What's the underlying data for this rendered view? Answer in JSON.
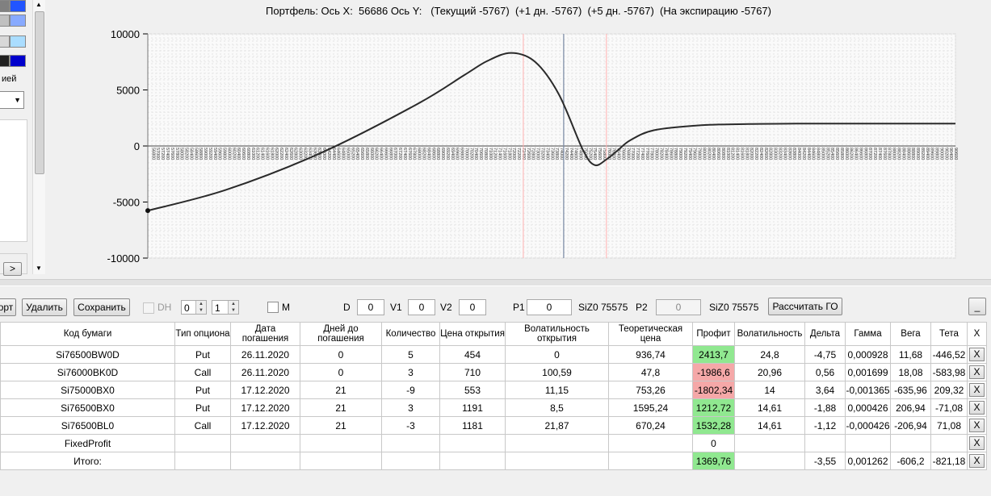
{
  "left_panel": {
    "label_tail": "ией",
    "next_button": ">",
    "swatches": [
      [
        "#808080",
        "#2255ff"
      ],
      [
        "#c0c0c0",
        "#88aaff"
      ],
      [
        "#d8d8d8",
        "#aaddff"
      ],
      [
        "#202020",
        "#0000cc"
      ]
    ]
  },
  "chart": {
    "title": "Портфель: Ось X:  56686 Ось Y:   (Текущий -5767)  (+1 дн. -5767)  (+5 дн. -5767)  (На экспирацию -5767)"
  },
  "chart_data": {
    "type": "line",
    "title": "Портфель: Ось X:  56686 Ось Y:   (Текущий -5767)  (+1 дн. -5767)  (+5 дн. -5767)  (На экспирацию -5767)",
    "xlabel": "",
    "ylabel": "",
    "xlim": [
      56686,
      90700
    ],
    "ylim": [
      -10000,
      10000
    ],
    "y_ticks": [
      "10000",
      "5000",
      "0",
      "-5000",
      "-10000"
    ],
    "grid": true,
    "vertical_markers": {
      "pink": [
        72500,
        76000
      ],
      "blue": [
        74200
      ]
    },
    "series": [
      {
        "x": [
          56686,
          60000,
          64000,
          68000,
          70000,
          71000,
          72000,
          73000,
          74000,
          75000,
          75500,
          76000,
          76500,
          77000,
          78000,
          80000,
          82000,
          84000,
          86000,
          88000,
          90700
        ],
        "values": [
          -5767,
          -3900,
          -600,
          3700,
          6300,
          7600,
          8300,
          7500,
          4600,
          -300,
          -1700,
          -1200,
          -350,
          500,
          1400,
          1850,
          1960,
          1990,
          2000,
          2000,
          2000
        ]
      }
    ]
  },
  "toolbar": {
    "import_label": "орт",
    "delete_label": "Удалить",
    "save_label": "Сохранить",
    "dh_label": "DH",
    "spin1_value": "0",
    "spin2_value": "1",
    "m_label": "M",
    "d_label": "D",
    "d_value": "0",
    "v1_label": "V1",
    "v1_value": "0",
    "v2_label": "V2",
    "v2_value": "0",
    "p1_label": "P1",
    "p1_value": "0",
    "p1_ticker": "SiZ0 75575",
    "p2_label": "P2",
    "p2_value": "0",
    "p2_ticker": "SiZ0 75575",
    "calc_go_label": "Рассчитать ГО",
    "minimize_label": "_"
  },
  "table": {
    "headers": [
      "Код бумаги",
      "Тип опциона",
      "Дата погашения",
      "Дней до погашения",
      "Количество",
      "Цена открытия",
      "Волатильность открытия",
      "Теоретическая цена",
      "Профит",
      "Волатильность",
      "Дельта",
      "Гамма",
      "Вега",
      "Тета",
      "X"
    ],
    "rows": [
      [
        "Si76500BW0D",
        "Put",
        "26.11.2020",
        "0",
        "5",
        "454",
        "0",
        "936,74",
        "2413,7",
        "24,8",
        "-4,75",
        "0,000928",
        "11,68",
        "-446,52"
      ],
      [
        "Si76000BK0D",
        "Call",
        "26.11.2020",
        "0",
        "3",
        "710",
        "100,59",
        "47,8",
        "-1986,6",
        "20,96",
        "0,56",
        "0,001699",
        "18,08",
        "-583,98"
      ],
      [
        "Si75000BX0",
        "Put",
        "17.12.2020",
        "21",
        "-9",
        "553",
        "11,15",
        "753,26",
        "-1802,34",
        "14",
        "3,64",
        "-0,001365",
        "-635,96",
        "209,32"
      ],
      [
        "Si76500BX0",
        "Put",
        "17.12.2020",
        "21",
        "3",
        "1191",
        "8,5",
        "1595,24",
        "1212,72",
        "14,61",
        "-1,88",
        "0,000426",
        "206,94",
        "-71,08"
      ],
      [
        "Si76500BL0",
        "Call",
        "17.12.2020",
        "21",
        "-3",
        "1181",
        "21,87",
        "670,24",
        "1532,28",
        "14,61",
        "-1,12",
        "-0,000426",
        "-206,94",
        "71,08"
      ],
      [
        "FixedProfit",
        "",
        "",
        "",
        "",
        "",
        "",
        "",
        "0",
        "",
        "",
        "",
        "",
        ""
      ],
      [
        "Итого:",
        "",
        "",
        "",
        "",
        "",
        "",
        "",
        "1369,76",
        "",
        "-3,55",
        "0,001262",
        "-606,2",
        "-821,18"
      ]
    ],
    "profit_status": [
      "pos",
      "neg",
      "neg",
      "pos",
      "pos",
      "",
      "pos"
    ],
    "delete_label": "X"
  }
}
